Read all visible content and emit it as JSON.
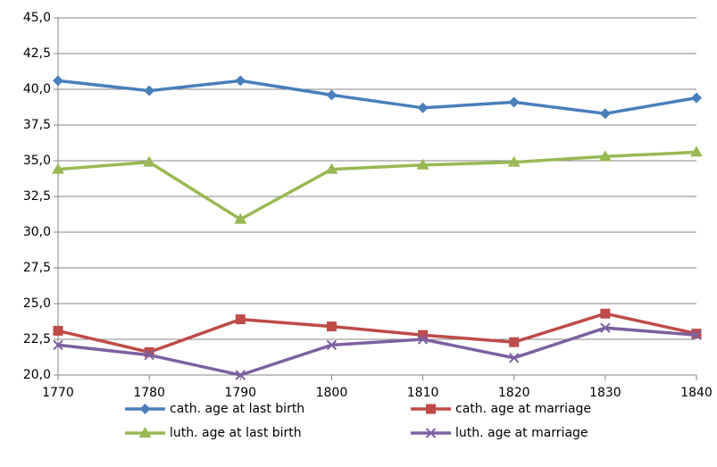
{
  "chart_data": {
    "type": "line",
    "x": [
      1770,
      1780,
      1790,
      1800,
      1810,
      1820,
      1830,
      1840
    ],
    "xlim": [
      1770,
      1840
    ],
    "xticks": [
      1770,
      1780,
      1790,
      1800,
      1810,
      1820,
      1830,
      1840
    ],
    "ylim": [
      20,
      45
    ],
    "yticks": [
      {
        "value": 20,
        "label": "20,0"
      },
      {
        "value": 22.5,
        "label": "22,5"
      },
      {
        "value": 25,
        "label": "25,0"
      },
      {
        "value": 27.5,
        "label": "27,5"
      },
      {
        "value": 30,
        "label": "30,0"
      },
      {
        "value": 32.5,
        "label": "32,5"
      },
      {
        "value": 35,
        "label": "35,0"
      },
      {
        "value": 37.5,
        "label": "37,5"
      },
      {
        "value": 40,
        "label": "40,0"
      },
      {
        "value": 42.5,
        "label": "42,5"
      },
      {
        "value": 45,
        "label": "45,0"
      }
    ],
    "grid": true,
    "legend": "bottom",
    "series": [
      {
        "name": "cath. age at last birth",
        "color": "#4a7ebb",
        "marker": "diamond",
        "values": [
          40.6,
          39.9,
          40.6,
          39.6,
          38.7,
          39.1,
          38.3,
          39.4
        ]
      },
      {
        "name": "cath. age at marriage",
        "color": "#be4b48",
        "marker": "square",
        "values": [
          23.1,
          21.6,
          23.9,
          23.4,
          22.8,
          22.3,
          24.3,
          22.9
        ]
      },
      {
        "name": "luth. age at last birth",
        "color": "#98b954",
        "marker": "triangle",
        "values": [
          34.4,
          34.9,
          30.9,
          34.4,
          34.7,
          34.9,
          35.3,
          35.6
        ]
      },
      {
        "name": "luth. age at marriage",
        "color": "#7d60a0",
        "marker": "x",
        "values": [
          22.1,
          21.4,
          20.0,
          22.1,
          22.5,
          21.2,
          23.3,
          22.8
        ]
      }
    ]
  }
}
